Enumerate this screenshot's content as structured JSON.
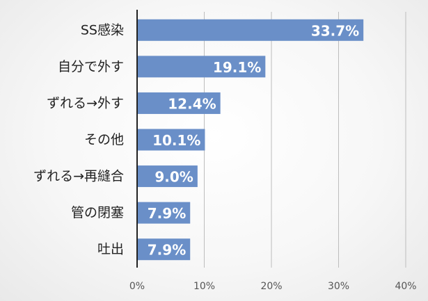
{
  "chart_data": {
    "type": "bar",
    "orientation": "horizontal",
    "categories": [
      "SS感染",
      "自分で外す",
      "ずれる→外す",
      "その他",
      "ずれる→再縫合",
      "管の閉塞",
      "吐出"
    ],
    "values": [
      33.7,
      19.1,
      12.4,
      10.1,
      9.0,
      7.9,
      7.9
    ],
    "data_labels": [
      "33.7%",
      "19.1%",
      "12.4%",
      "10.1%",
      "9.0%",
      "7.9%",
      "7.9%"
    ],
    "xlim": [
      0,
      40
    ],
    "x_ticks": [
      0,
      10,
      20,
      30,
      40
    ],
    "x_tick_labels": [
      "0%",
      "10%",
      "20%",
      "30%",
      "40%"
    ],
    "grid": "vertical",
    "legend": "none",
    "title": "",
    "xlabel": "",
    "ylabel": "",
    "colors": {
      "bar": "#6a8fc8",
      "grid": "#bdbdbd",
      "axis": "#222222",
      "data_label": "#ffffff"
    }
  }
}
